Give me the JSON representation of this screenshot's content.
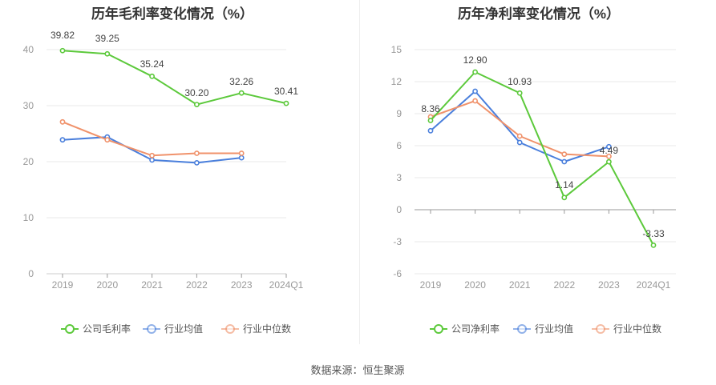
{
  "source_text": "数据来源：恒生聚源",
  "chart_data": [
    {
      "type": "line",
      "title": "历年毛利率变化情况（%）",
      "categories": [
        "2019",
        "2020",
        "2021",
        "2022",
        "2023",
        "2024Q1"
      ],
      "ylim": [
        0,
        40
      ],
      "yticks": [
        0,
        10,
        20,
        30,
        40
      ],
      "ytick_labels": [
        "0",
        "10",
        "20",
        "30",
        "40"
      ],
      "grid": true,
      "legend_position": "bottom",
      "series": [
        {
          "name": "公司毛利率",
          "color": "#5cc93b",
          "values": [
            39.82,
            39.25,
            35.24,
            30.2,
            32.26,
            30.41
          ],
          "labels": [
            "39.82",
            "39.25",
            "35.24",
            "30.20",
            "32.26",
            "30.41"
          ]
        },
        {
          "name": "行业均值",
          "color": "#4a7fdc",
          "values": [
            23.9,
            24.4,
            20.3,
            19.8,
            20.7,
            null
          ]
        },
        {
          "name": "行业中位数",
          "color": "#f0926b",
          "values": [
            27.1,
            23.9,
            21.1,
            21.5,
            21.5,
            null
          ]
        }
      ]
    },
    {
      "type": "line",
      "title": "历年净利率变化情况（%）",
      "categories": [
        "2019",
        "2020",
        "2021",
        "2022",
        "2023",
        "2024Q1"
      ],
      "ylim": [
        -6,
        15
      ],
      "yticks": [
        -6,
        -3,
        0,
        3,
        6,
        9,
        12,
        15
      ],
      "ytick_labels": [
        "-6",
        "-3",
        "0",
        "3",
        "6",
        "9",
        "12",
        "15"
      ],
      "grid": true,
      "legend_position": "bottom",
      "series": [
        {
          "name": "公司净利率",
          "color": "#5cc93b",
          "values": [
            8.36,
            12.9,
            10.93,
            1.14,
            4.49,
            -3.33
          ],
          "labels": [
            "8.36",
            "12.90",
            "10.93",
            "1.14",
            "4.49",
            "-3.33"
          ]
        },
        {
          "name": "行业均值",
          "color": "#4a7fdc",
          "values": [
            7.4,
            11.1,
            6.3,
            4.5,
            5.9,
            null
          ]
        },
        {
          "name": "行业中位数",
          "color": "#f0926b",
          "values": [
            8.7,
            10.2,
            6.9,
            5.2,
            5.0,
            null
          ]
        }
      ]
    }
  ]
}
